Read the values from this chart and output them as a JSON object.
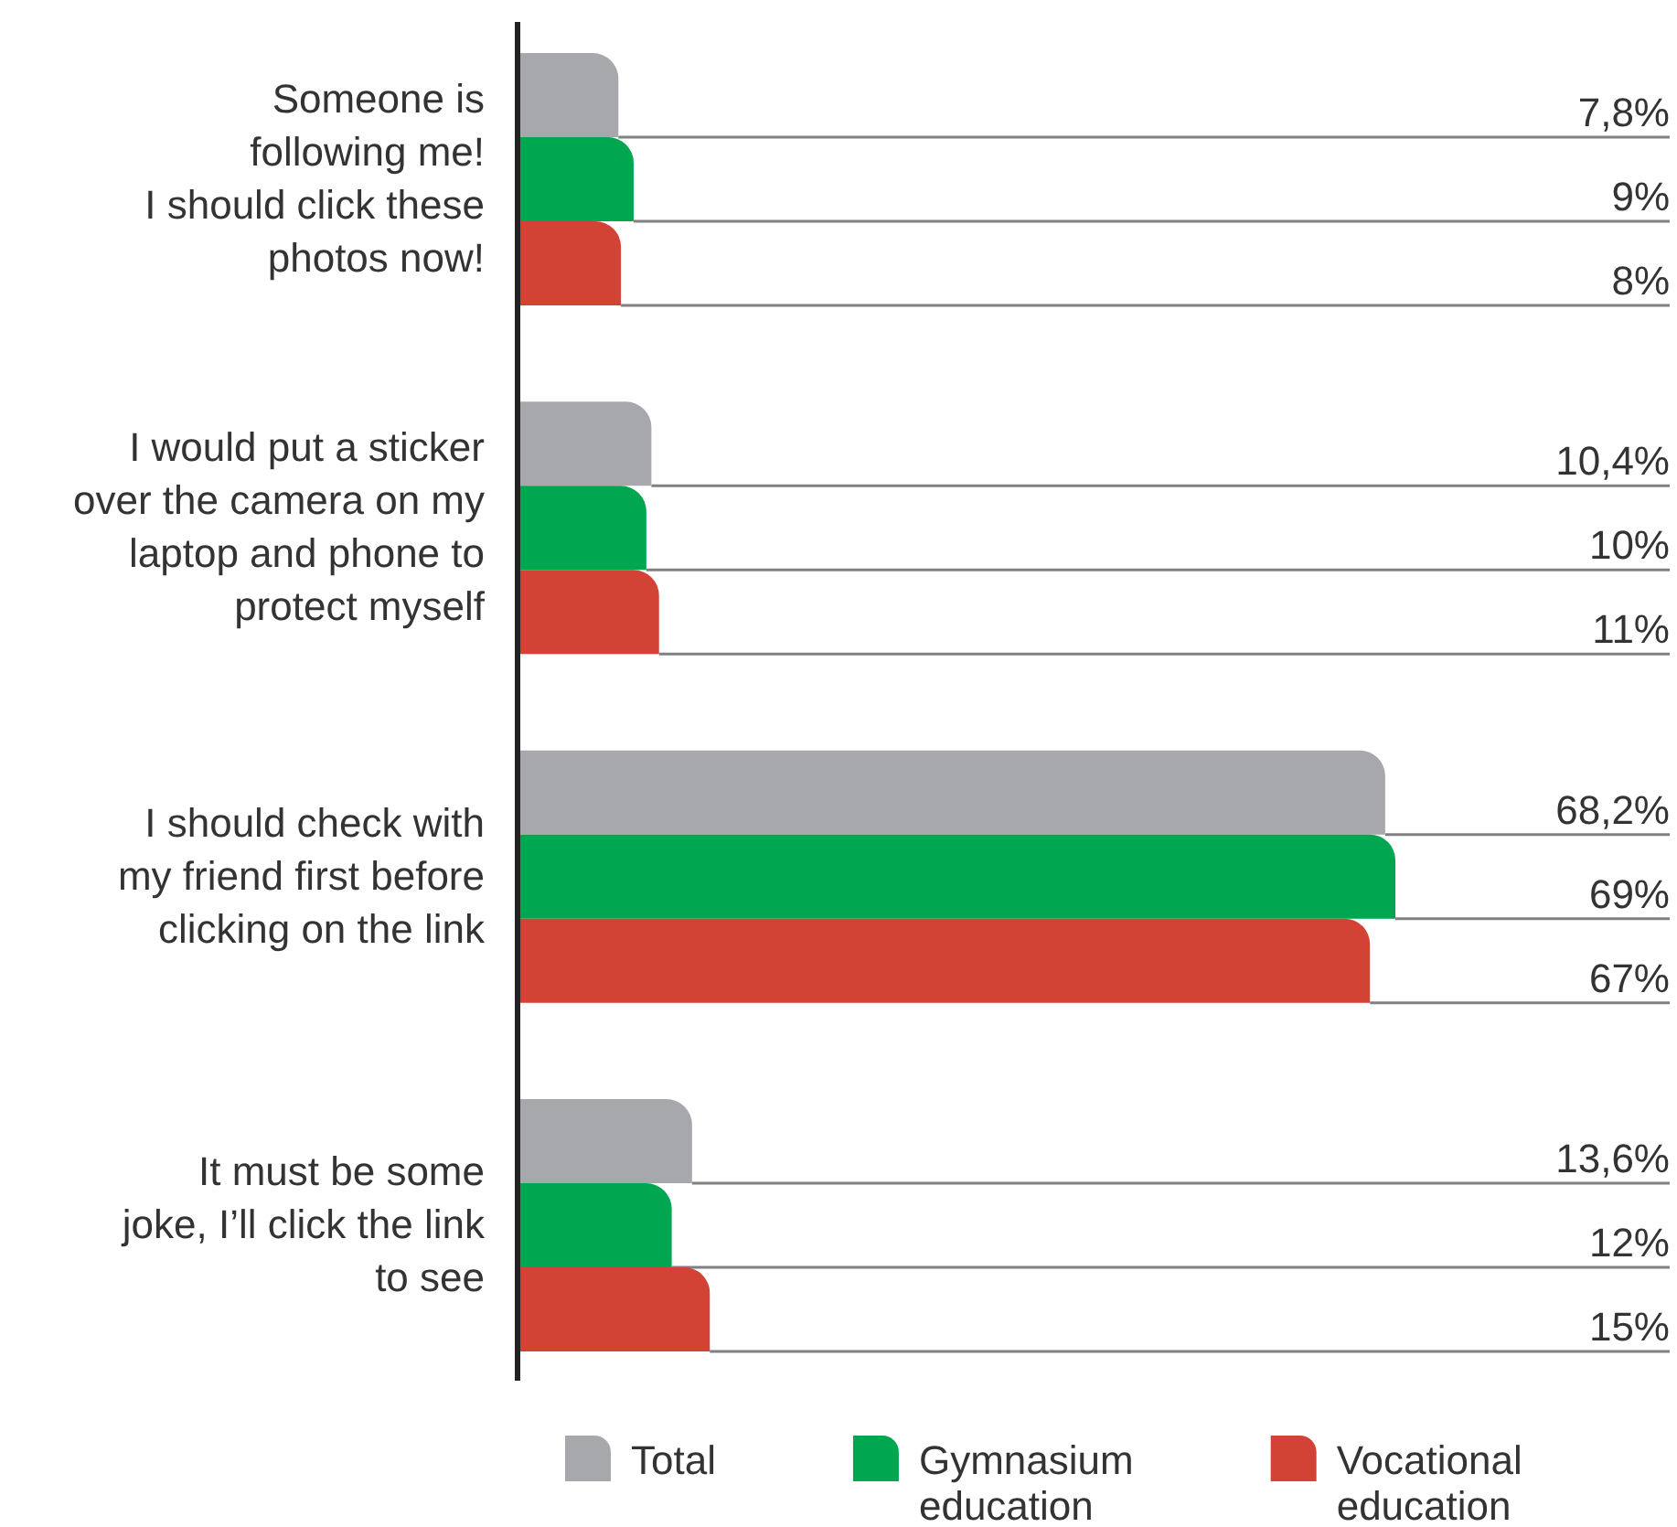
{
  "chart_data": {
    "type": "bar",
    "orientation": "horizontal",
    "categories": [
      "Someone is\nfollowing me!\nI should click these\nphotos now!",
      "I would put a sticker\nover the camera on my\nlaptop and phone to\nprotect myself",
      "I should check with\nmy friend first before\nclicking on the link",
      "It must be some\njoke, I’ll click the link\nto see"
    ],
    "series": [
      {
        "name": "Total",
        "color": "#a7a8ab",
        "values": [
          7.8,
          10.4,
          68.2,
          13.6
        ],
        "value_labels": [
          "7,8%",
          "10,4%",
          "68,2%",
          "13,6%"
        ]
      },
      {
        "name": "Gymnasium education",
        "color": "#00a650",
        "values": [
          9,
          10,
          69,
          12
        ],
        "value_labels": [
          "9%",
          "10%",
          "69%",
          "12%"
        ]
      },
      {
        "name": "Vocational education",
        "color": "#d34335",
        "values": [
          8,
          11,
          67,
          15
        ],
        "value_labels": [
          "8%",
          "11%",
          "67%",
          "15%"
        ]
      }
    ],
    "legend": "bottom"
  }
}
